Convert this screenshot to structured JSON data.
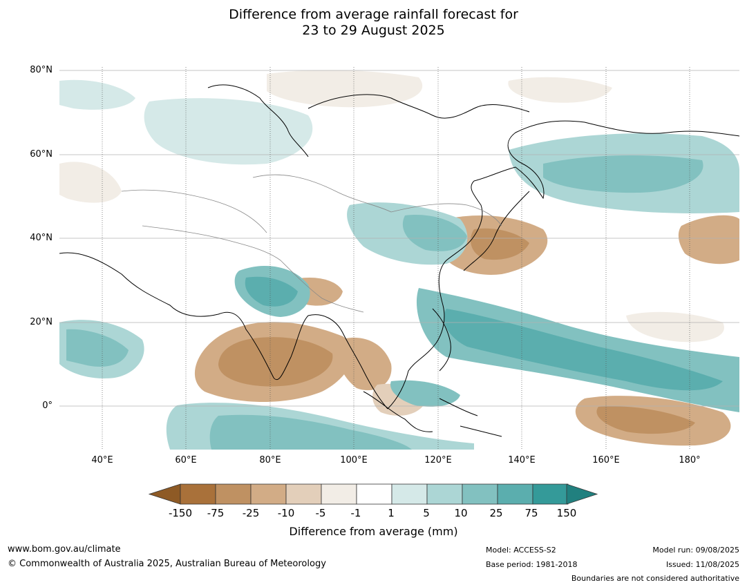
{
  "title": {
    "line1": "Difference from average rainfall forecast for",
    "line2": "23 to 29 August 2025"
  },
  "map": {
    "lat_labels": [
      "80°N",
      "60°N",
      "40°N",
      "20°N",
      "0°"
    ],
    "lon_labels": [
      "40°E",
      "60°E",
      "80°E",
      "100°E",
      "120°E",
      "140°E",
      "160°E",
      "180°"
    ]
  },
  "colorbar": {
    "title": "Difference from average (mm)",
    "ticks": [
      "-150",
      "-75",
      "-25",
      "-10",
      "-5",
      "-1",
      "1",
      "5",
      "10",
      "25",
      "75",
      "150"
    ],
    "colors": [
      "#a9713a",
      "#bf9162",
      "#d2ac86",
      "#e3cfba",
      "#f2ede6",
      "#ffffff",
      "#d5e9e8",
      "#acd6d5",
      "#82c1c0",
      "#5baeae",
      "#349a99"
    ],
    "under_color": "#8e5a25",
    "over_color": "#21807f"
  },
  "footer": {
    "website": "www.bom.gov.au/climate",
    "copyright": "© Commonwealth of Australia 2025, Australian Bureau of Meteorology",
    "model": "Model: ACCESS-S2",
    "base_period": "Base period: 1981-2018",
    "model_run": "Model run: 09/08/2025",
    "issued": "Issued: 11/08/2025",
    "disclaimer": "Boundaries are not considered authoritative"
  }
}
